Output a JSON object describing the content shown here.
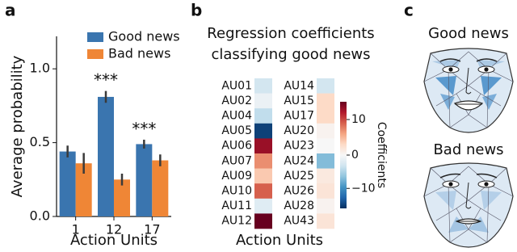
{
  "chart_data": [
    {
      "type": "bar",
      "panel_label": "a",
      "categories": [
        "1",
        "12",
        "17"
      ],
      "series": [
        {
          "name": "Good news",
          "color": "#3a75af",
          "values": [
            0.44,
            0.81,
            0.49
          ],
          "errors": [
            0.04,
            0.04,
            0.03
          ]
        },
        {
          "name": "Bad news",
          "color": "#ef8636",
          "values": [
            0.36,
            0.25,
            0.38
          ],
          "errors": [
            0.07,
            0.04,
            0.04
          ]
        }
      ],
      "annotations": [
        {
          "text": "***",
          "x": "12"
        },
        {
          "text": "***",
          "x": "17"
        }
      ],
      "ylim": [
        0,
        1.22
      ],
      "yticks": [
        {
          "value": 0,
          "label": "0.0"
        },
        {
          "value": 0.5,
          "label": "0.5"
        },
        {
          "value": 1,
          "label": "1.0"
        }
      ],
      "ylabel": "Average probability",
      "xlabel": "Action Units",
      "legend": "upper right"
    },
    {
      "type": "heatmap",
      "panel_label": "b",
      "title": [
        "Regression coefficients",
        "classifying good news"
      ],
      "columns": [
        {
          "labels": [
            "AU01",
            "AU02",
            "AU04",
            "AU05",
            "AU06",
            "AU07",
            "AU09",
            "AU10",
            "AU11",
            "AU12"
          ],
          "values": [
            -3,
            -1,
            -4,
            -15,
            13,
            7,
            4,
            9,
            -2,
            15
          ]
        },
        {
          "labels": [
            "AU14",
            "AU15",
            "AU17",
            "AU20",
            "AU23",
            "AU24",
            "AU25",
            "AU26",
            "AU28",
            "AU43"
          ],
          "values": [
            -3,
            3,
            3,
            0.5,
            0,
            -7,
            1.5,
            2,
            0.5,
            2
          ]
        }
      ],
      "clim": [
        -16,
        15
      ],
      "cticks": [
        10,
        0,
        {
          "value": -10,
          "label": "−10"
        }
      ],
      "clabel": "Coefficients",
      "xlabel": "Action Units"
    }
  ],
  "panel_c": {
    "panel_label": "c",
    "faces": [
      {
        "title": "Good news"
      },
      {
        "title": "Bad news"
      }
    ]
  }
}
